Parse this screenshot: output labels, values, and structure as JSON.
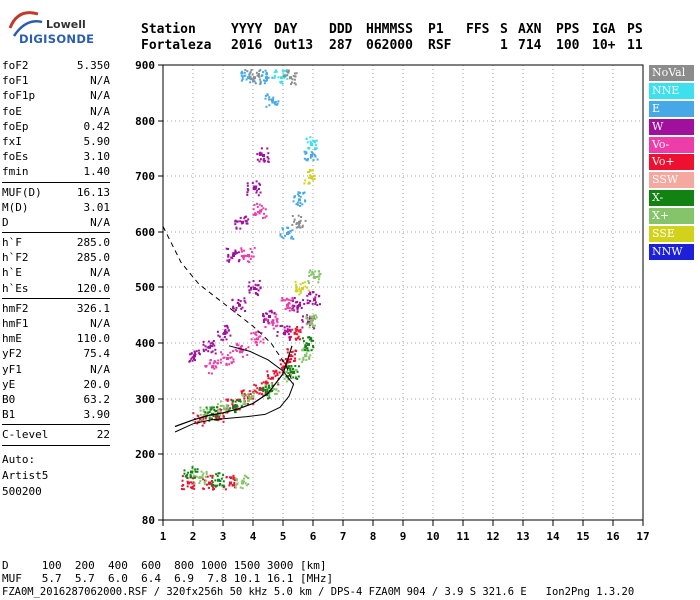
{
  "logo": {
    "line1": "Lowell",
    "line2": "DIGISONDE"
  },
  "header": {
    "labels": [
      "Station",
      "YYYY",
      "DAY",
      "DDD",
      "HHMMSS",
      "P1",
      "FFS",
      "S",
      "AXN",
      "PPS",
      "IGA",
      "PS"
    ],
    "values": [
      "Fortaleza",
      "2016",
      "Out13",
      "287",
      "062000",
      "RSF",
      "",
      "1",
      "714",
      "100",
      "10+",
      "11"
    ]
  },
  "params": {
    "group1": [
      {
        "k": "foF2",
        "v": "5.350"
      },
      {
        "k": "foF1",
        "v": "N/A"
      },
      {
        "k": "foF1p",
        "v": "N/A"
      },
      {
        "k": "foE",
        "v": "N/A"
      },
      {
        "k": "foEp",
        "v": "0.42"
      },
      {
        "k": "fxI",
        "v": "5.90"
      },
      {
        "k": "foEs",
        "v": "3.10"
      },
      {
        "k": "fmin",
        "v": "1.40"
      }
    ],
    "group2": [
      {
        "k": "MUF(D)",
        "v": "16.13"
      },
      {
        "k": "M(D)",
        "v": "3.01"
      },
      {
        "k": "D",
        "v": "N/A"
      }
    ],
    "group3": [
      {
        "k": "h`F",
        "v": "285.0"
      },
      {
        "k": "h`F2",
        "v": "285.0"
      },
      {
        "k": "h`E",
        "v": "N/A"
      },
      {
        "k": "h`Es",
        "v": "120.0"
      }
    ],
    "group4": [
      {
        "k": "hmF2",
        "v": "326.1"
      },
      {
        "k": "hmF1",
        "v": "N/A"
      },
      {
        "k": "hmE",
        "v": "110.0"
      },
      {
        "k": "yF2",
        "v": "75.4"
      },
      {
        "k": "yF1",
        "v": "N/A"
      },
      {
        "k": "yE",
        "v": "20.0"
      },
      {
        "k": "B0",
        "v": "63.2"
      },
      {
        "k": "B1",
        "v": "3.90"
      }
    ],
    "group5": [
      {
        "k": "C-level",
        "v": "22"
      }
    ],
    "auto": [
      "Auto:",
      "Artist5",
      "500200"
    ]
  },
  "footer": {
    "d_row": "D     100  200  400  600  800 1000 1500 3000 [km]",
    "muf_row": "MUF   5.7  5.7  6.0  6.4  6.9  7.8 10.1 16.1 [MHz]",
    "file_row": "FZA0M_2016287062000.RSF / 320fx256h 50 kHz 5.0 km / DPS-4 FZA0M 904 / 3.9 S 321.6 E   Ion2Png 1.3.20"
  },
  "legend": [
    {
      "label": "NoVal",
      "color": "#8c8c8c"
    },
    {
      "label": "NNE",
      "color": "#3fe0ee"
    },
    {
      "label": "E",
      "color": "#46a8e6"
    },
    {
      "label": "W",
      "color": "#a0109c"
    },
    {
      "label": "Vo-",
      "color": "#ee3ca8"
    },
    {
      "label": "Vo+",
      "color": "#ee1030"
    },
    {
      "label": "SSW",
      "color": "#f4a8a0"
    },
    {
      "label": "X-",
      "color": "#128212"
    },
    {
      "label": "X+",
      "color": "#86c46a"
    },
    {
      "label": "SSE",
      "color": "#d2d21c"
    },
    {
      "label": "NNW",
      "color": "#1c20d8"
    }
  ],
  "chart_data": {
    "type": "scatter",
    "xlabel": "",
    "ylabel": "",
    "xlim": [
      1,
      17
    ],
    "ylim": [
      80,
      900
    ],
    "xticks": [
      1,
      2,
      3,
      4,
      5,
      6,
      7,
      8,
      9,
      10,
      11,
      12,
      13,
      14,
      15,
      16,
      17
    ],
    "yticks": [
      80,
      200,
      300,
      400,
      500,
      600,
      700,
      800,
      900
    ],
    "grid": true,
    "legend_placement": "right",
    "series": [
      {
        "name": "Vo+",
        "color": "#ee1030",
        "points": [
          [
            2.2,
            265
          ],
          [
            2.8,
            272
          ],
          [
            3.3,
            290
          ],
          [
            3.8,
            305
          ],
          [
            4.2,
            320
          ],
          [
            4.6,
            340
          ],
          [
            5.0,
            360
          ],
          [
            5.2,
            380
          ],
          [
            5.35,
            420
          ],
          [
            1.8,
            150
          ],
          [
            2.5,
            150
          ],
          [
            3.2,
            150
          ]
        ]
      },
      {
        "name": "W",
        "color": "#a0109c",
        "points": [
          [
            2.0,
            380
          ],
          [
            2.5,
            395
          ],
          [
            3.0,
            420
          ],
          [
            3.5,
            470
          ],
          [
            4.0,
            500
          ],
          [
            4.5,
            450
          ],
          [
            5.0,
            420
          ],
          [
            5.5,
            470
          ],
          [
            3.3,
            560
          ],
          [
            3.6,
            620
          ],
          [
            4.0,
            680
          ],
          [
            4.3,
            740
          ],
          [
            5.8,
            440
          ],
          [
            6.0,
            480
          ]
        ]
      },
      {
        "name": "Vo-",
        "color": "#ee3ca8",
        "points": [
          [
            2.6,
            360
          ],
          [
            3.1,
            375
          ],
          [
            3.6,
            390
          ],
          [
            4.1,
            410
          ],
          [
            4.6,
            440
          ],
          [
            5.1,
            470
          ],
          [
            3.8,
            560
          ],
          [
            4.2,
            640
          ]
        ]
      },
      {
        "name": "X+",
        "color": "#86c46a",
        "points": [
          [
            2.4,
            275
          ],
          [
            3.0,
            285
          ],
          [
            3.8,
            300
          ],
          [
            4.6,
            320
          ],
          [
            5.2,
            345
          ],
          [
            5.7,
            380
          ],
          [
            5.9,
            440
          ],
          [
            6.0,
            520
          ],
          [
            2.2,
            160
          ],
          [
            3.6,
            150
          ]
        ]
      },
      {
        "name": "X-",
        "color": "#128212",
        "points": [
          [
            2.6,
            275
          ],
          [
            3.4,
            290
          ],
          [
            4.4,
            315
          ],
          [
            5.3,
            350
          ],
          [
            5.8,
            400
          ],
          [
            1.9,
            170
          ],
          [
            2.8,
            155
          ]
        ]
      },
      {
        "name": "E",
        "color": "#46a8e6",
        "points": [
          [
            5.1,
            600
          ],
          [
            5.5,
            660
          ],
          [
            5.9,
            740
          ],
          [
            4.6,
            840
          ],
          [
            4.4,
            880
          ],
          [
            3.8,
            880
          ]
        ]
      },
      {
        "name": "NNE",
        "color": "#3fe0ee",
        "points": [
          [
            5.9,
            760
          ],
          [
            4.9,
            880
          ]
        ]
      },
      {
        "name": "NoVal",
        "color": "#8c8c8c",
        "points": [
          [
            4.0,
            880
          ],
          [
            5.2,
            880
          ],
          [
            5.5,
            620
          ]
        ]
      },
      {
        "name": "SSE",
        "color": "#d2d21c",
        "points": [
          [
            5.9,
            700
          ],
          [
            5.6,
            500
          ]
        ]
      }
    ],
    "curves": {
      "virtual_height_trace_x": [
        1.4,
        2.0,
        2.5,
        3.0,
        3.5,
        4.0,
        4.5,
        5.0,
        5.3
      ],
      "virtual_height_trace_y": [
        250,
        262,
        270,
        275,
        282,
        292,
        310,
        345,
        395
      ],
      "profile_solid_x": [
        1.4,
        2.0,
        2.6,
        3.2,
        3.8,
        4.4,
        4.9,
        5.2,
        5.35,
        5.0,
        4.5,
        3.9,
        3.2
      ],
      "profile_solid_y": [
        240,
        255,
        262,
        265,
        268,
        272,
        285,
        305,
        326,
        350,
        370,
        385,
        395
      ],
      "profile_dashed_x": [
        1.0,
        1.6,
        2.2,
        2.8,
        3.4,
        4.0,
        4.6,
        5.1,
        5.35
      ],
      "profile_dashed_y": [
        610,
        545,
        505,
        480,
        455,
        430,
        400,
        360,
        326
      ]
    }
  }
}
